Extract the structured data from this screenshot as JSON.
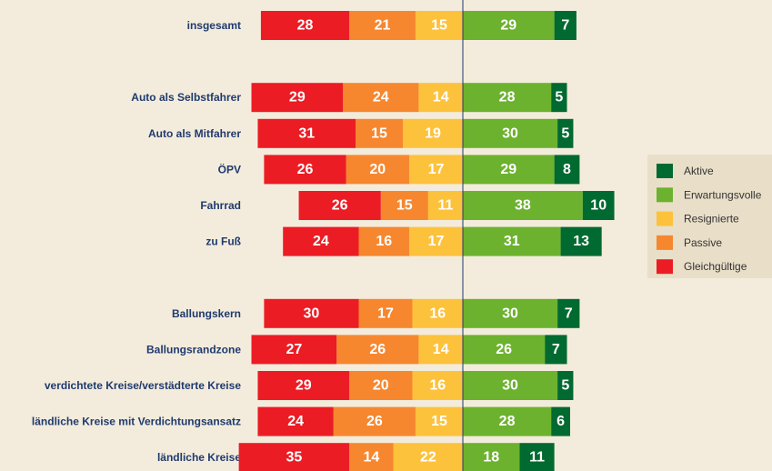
{
  "chart_data": {
    "type": "diverging-bar",
    "categories": [
      "insgesamt",
      null,
      "Auto als Selbstfahrer",
      "Auto als Mitfahrer",
      "ÖPV",
      "Fahrrad",
      "zu Fuß",
      null,
      "Ballungskern",
      "Ballungsrandzone",
      "verdichtete Kreise/verstädterte Kreise",
      "ländliche Kreise mit Verdichtungsansatz",
      "ländliche Kreise"
    ],
    "series": [
      {
        "name": "Aktive",
        "color": "#006a30",
        "values": [
          7,
          null,
          5,
          5,
          8,
          10,
          13,
          null,
          7,
          7,
          5,
          6,
          11
        ]
      },
      {
        "name": "Erwartungsvolle",
        "color": "#6cb22e",
        "values": [
          29,
          null,
          28,
          30,
          29,
          38,
          31,
          null,
          30,
          26,
          30,
          28,
          18
        ]
      },
      {
        "name": "Resignierte",
        "color": "#fdc23c",
        "values": [
          15,
          null,
          14,
          19,
          17,
          11,
          17,
          null,
          16,
          14,
          16,
          15,
          22
        ]
      },
      {
        "name": "Passive",
        "color": "#f6872f",
        "values": [
          21,
          null,
          24,
          15,
          20,
          15,
          16,
          null,
          17,
          26,
          20,
          26,
          14
        ]
      },
      {
        "name": "Gleichgültige",
        "color": "#ec1c24",
        "values": [
          28,
          null,
          29,
          31,
          26,
          26,
          24,
          null,
          30,
          27,
          29,
          24,
          35
        ]
      }
    ]
  }
}
